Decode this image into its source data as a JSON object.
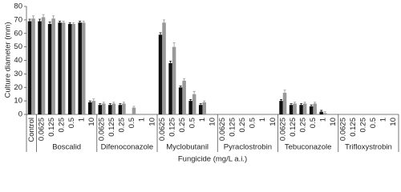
{
  "chart_data": {
    "type": "bar",
    "x_title": "Fungicide (mg/L a.i.)",
    "y_title": "Culture diameter (mm)",
    "x_labels": [
      "Control"
    ],
    "groups": [
      {
        "name": "Boscalid",
        "categories": [
          "0.0625",
          "0.125",
          "0.25",
          "0.5",
          "1",
          "10"
        ]
      },
      {
        "name": "Difenoconazole",
        "categories": [
          "0.0625",
          "0.125",
          "0.25",
          "0.5",
          "1",
          "10"
        ]
      },
      {
        "name": "Myclobutanil",
        "categories": [
          "0.0625",
          "0.125",
          "0.25",
          "0.5",
          "1",
          "10"
        ]
      },
      {
        "name": "Pyraclostrobin",
        "categories": [
          "0.0625",
          "0.125",
          "0.25",
          "0.5",
          "1",
          "10"
        ]
      },
      {
        "name": "Tebuconazole",
        "categories": [
          "0.0625",
          "0.125",
          "0.25",
          "0.5",
          "1",
          "10"
        ]
      },
      {
        "name": "Trifloxystrobin",
        "categories": [
          "0.0625",
          "0.125",
          "0.25",
          "0.5",
          "1",
          "10"
        ]
      }
    ],
    "series": [
      {
        "color": "#111111",
        "values": [
          69,
          69,
          67,
          68,
          67,
          68,
          9,
          7,
          7,
          7,
          0,
          0,
          0,
          59,
          38,
          20,
          10,
          7,
          0,
          0,
          0,
          0,
          0,
          0,
          0,
          10,
          7,
          7,
          6,
          2,
          0,
          0,
          0,
          0,
          0,
          0,
          0
        ],
        "errors": [
          1.5,
          1.5,
          1.5,
          1,
          1,
          1,
          1,
          1,
          1,
          1,
          0,
          0,
          0,
          1.5,
          1.5,
          1,
          1,
          1,
          0,
          0,
          0,
          0,
          0,
          0,
          0,
          1,
          1,
          1,
          1,
          1,
          0,
          0,
          0,
          0,
          0,
          0,
          0
        ]
      },
      {
        "color": "#999999",
        "values": [
          71,
          72,
          71,
          68,
          67,
          68,
          10,
          8,
          8,
          8,
          5,
          0,
          0,
          68,
          50,
          25,
          15,
          9,
          0,
          0,
          0,
          0,
          0,
          0,
          0,
          16,
          8,
          8,
          8,
          1,
          0,
          0,
          0,
          0,
          0,
          0,
          0
        ],
        "errors": [
          2,
          2,
          2,
          1,
          1,
          1,
          1.5,
          1,
          1,
          1,
          1,
          0,
          0,
          2,
          3,
          1.5,
          2,
          1,
          0,
          0,
          0,
          0,
          0,
          0,
          0,
          2,
          1,
          1,
          1,
          1,
          0,
          0,
          0,
          0,
          0,
          0,
          0
        ]
      }
    ],
    "ylim": [
      0,
      80
    ],
    "yticks": [
      0,
      10,
      20,
      30,
      40,
      50,
      60,
      70,
      80
    ]
  }
}
